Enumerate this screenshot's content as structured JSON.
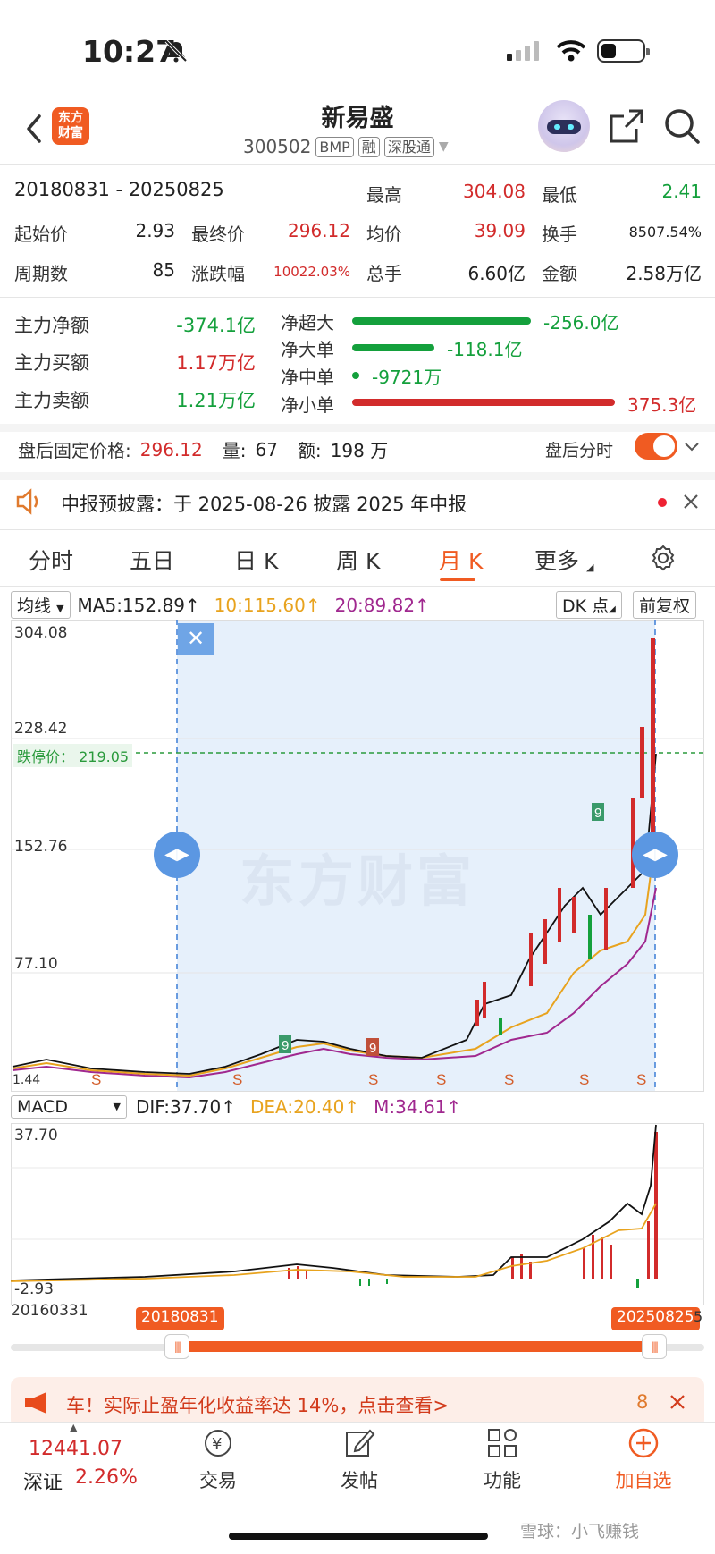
{
  "status_bar": {
    "time": "10:27"
  },
  "header": {
    "logo_text_1": "东方",
    "logo_text_2": "财富",
    "title": "新易盛",
    "code": "300502",
    "tags": [
      "BMP",
      "融",
      "深股通"
    ]
  },
  "summary": {
    "period": "20180831 - 20250825",
    "high_label": "最高",
    "high": "304.08",
    "low_label": "最低",
    "low": "2.41",
    "start_label": "起始价",
    "start": "2.93",
    "end_label": "最终价",
    "end": "296.12",
    "avg_label": "均价",
    "avg": "39.09",
    "turnover_label": "换手",
    "turnover": "8507.54%",
    "periods_label": "周期数",
    "periods": "85",
    "change_label": "涨跌幅",
    "change": "10022.03%",
    "volume_label": "总手",
    "volume": "6.60亿",
    "amount_label": "金额",
    "amount": "2.58万亿"
  },
  "fund_flow": {
    "main_net_label": "主力净额",
    "main_net": "-374.1亿",
    "main_buy_label": "主力买额",
    "main_buy": "1.17万亿",
    "main_sell_label": "主力卖额",
    "main_sell": "1.21万亿",
    "orders": [
      {
        "label": "净超大",
        "value": "-256.0亿",
        "color": "#14a03c"
      },
      {
        "label": "净大单",
        "value": "-118.1亿",
        "color": "#14a03c"
      },
      {
        "label": "净中单",
        "value": "-9721万",
        "color": "#14a03c"
      },
      {
        "label": "净小单",
        "value": "375.3亿",
        "color": "#d22b2b"
      }
    ]
  },
  "after_hours": {
    "price_label": "盘后固定价格:",
    "price": "296.12",
    "qty_label": "量:",
    "qty": "67",
    "amt_label": "额:",
    "amt": "198 万",
    "toggle_label": "盘后分时"
  },
  "notice": {
    "text": "中报预披露：于 2025-08-26 披露 2025 年中报"
  },
  "tabs": [
    "分时",
    "五日",
    "日 K",
    "周 K",
    "月 K",
    "更多"
  ],
  "chart": {
    "ma_select": "均线",
    "ma5": "MA5:152.89↑",
    "ma10": "10:115.60↑",
    "ma20": "20:89.82↑",
    "dk_button": "DK 点",
    "adjust_button": "前复权",
    "y_ticks": [
      "304.08",
      "228.42",
      "152.76",
      "77.10",
      "1.44"
    ],
    "limit_down_label": "跌停价： 219.05",
    "watermark": "东方财富",
    "macd_select": "MACD",
    "dif": "DIF:37.70↑",
    "dea": "DEA:20.40↑",
    "m": "M:34.61↑",
    "macd_top": "37.70",
    "macd_bottom": "-2.93",
    "start_date": "20160331",
    "range_start": "20180831",
    "range_end": "20250825",
    "range_end_suffix": "5"
  },
  "chart_data": {
    "type": "line",
    "title": "",
    "xlabel": "",
    "ylabel": "",
    "ylim": [
      1.44,
      304.08
    ],
    "x": [
      "20160331",
      "20180831",
      "20250825"
    ],
    "series": [
      {
        "name": "MA5",
        "values": [
          null,
          null,
          152.89
        ]
      },
      {
        "name": "MA10",
        "values": [
          null,
          null,
          115.6
        ]
      },
      {
        "name": "MA20",
        "values": [
          null,
          null,
          89.82
        ]
      }
    ],
    "annotations": [
      "跌停价： 219.05"
    ]
  },
  "promo": {
    "text": "车！实际止盈年化收益率达 14%，点击查看>",
    "count": "8"
  },
  "bottom_bar": {
    "index_value": "12441.07",
    "index_name": "深证",
    "index_change": "2.26%",
    "items": [
      "交易",
      "发帖",
      "功能",
      "加自选"
    ]
  },
  "watermark_corner": "雪球：小飞赚钱"
}
